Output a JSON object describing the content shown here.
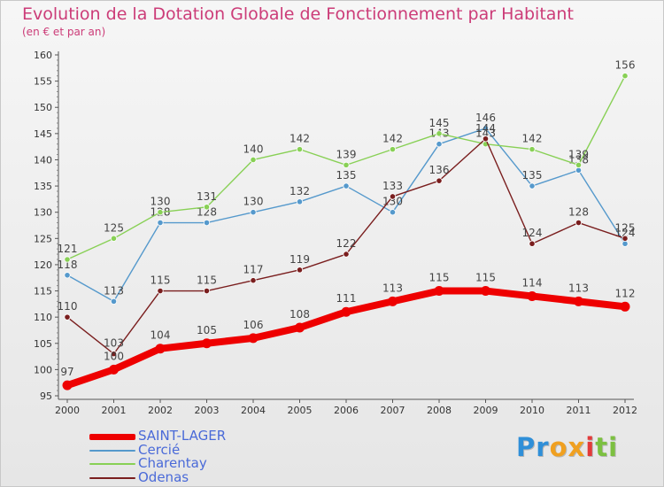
{
  "header": {
    "title": "Evolution de la Dotation Globale de Fonctionnement par Habitant",
    "subtitle": "(en € et par an)"
  },
  "colors": {
    "title": "#cc3c78",
    "legend_text": "#4a6ad8",
    "axis": "#555555",
    "tick_text": "#333333",
    "value_text": "#444444"
  },
  "brand": {
    "letters": [
      "P",
      "r",
      "o",
      "x",
      "i",
      "t",
      "i"
    ],
    "colors": [
      "#2f8fd8",
      "#2f8fd8",
      "#f0a020",
      "#f0a020",
      "#e23a3a",
      "#7cc040",
      "#7cc040"
    ],
    "text": "Proxiti"
  },
  "chart_data": {
    "type": "line",
    "title": "Evolution de la Dotation Globale de Fonctionnement par Habitant",
    "subtitle": "(en € et par an)",
    "xlabel": "",
    "ylabel": "",
    "ylim": [
      95,
      160
    ],
    "yticks": [
      95,
      100,
      105,
      110,
      115,
      120,
      125,
      130,
      135,
      140,
      145,
      150,
      155,
      160
    ],
    "grid": false,
    "legend_position": "bottom-left",
    "x": [
      "2000",
      "2001",
      "2002",
      "2003",
      "2004",
      "2005",
      "2006",
      "2007",
      "2008",
      "2009",
      "2010",
      "2011",
      "2012"
    ],
    "series": [
      {
        "name": "SAINT-LAGER",
        "color": "#ee0000",
        "highlight": true,
        "values": [
          97,
          100,
          104,
          105,
          106,
          108,
          111,
          113,
          115,
          115,
          114,
          113,
          112
        ]
      },
      {
        "name": "Cercié",
        "color": "#5599cc",
        "highlight": false,
        "values": [
          118,
          113,
          128,
          128,
          130,
          132,
          135,
          130,
          143,
          146,
          135,
          138,
          124
        ]
      },
      {
        "name": "Charentay",
        "color": "#88d055",
        "highlight": false,
        "values": [
          121,
          125,
          130,
          131,
          140,
          142,
          139,
          142,
          145,
          143,
          142,
          139,
          156
        ]
      },
      {
        "name": "Odenas",
        "color": "#7a1e1e",
        "highlight": false,
        "values": [
          110,
          103,
          115,
          115,
          117,
          119,
          122,
          133,
          136,
          144,
          124,
          128,
          125
        ]
      }
    ]
  }
}
